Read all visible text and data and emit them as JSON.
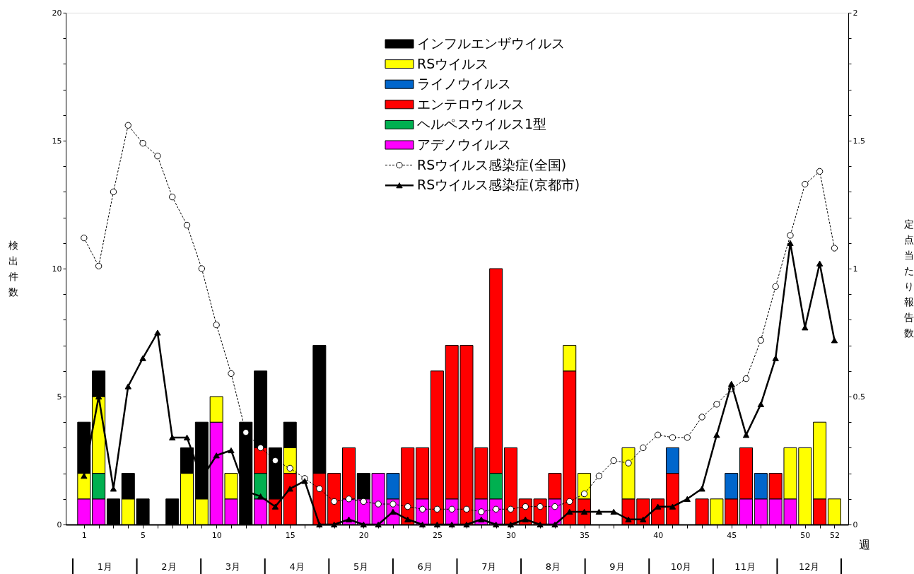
{
  "chart_data": {
    "type": "bar",
    "stacked": true,
    "xlabel": "週",
    "ylabel": "検出件数",
    "y2label": "定点当たり報告数",
    "x": [
      1,
      2,
      3,
      4,
      5,
      6,
      7,
      8,
      9,
      10,
      11,
      12,
      13,
      14,
      15,
      16,
      17,
      18,
      19,
      20,
      21,
      22,
      23,
      24,
      25,
      26,
      27,
      28,
      29,
      30,
      31,
      32,
      33,
      34,
      35,
      36,
      37,
      38,
      39,
      40,
      41,
      42,
      43,
      44,
      45,
      46,
      47,
      48,
      49,
      50,
      51,
      52
    ],
    "xlim": [
      0,
      52.7
    ],
    "xticks": [
      1,
      {
        "value": 2,
        "label": null
      },
      {
        "value": 3,
        "label": null
      },
      {
        "value": 4,
        "label": null
      },
      5,
      {
        "value": 6,
        "label": null
      },
      {
        "value": 7,
        "label": null
      },
      {
        "value": 8,
        "label": null
      },
      {
        "value": 9,
        "label": null
      },
      10,
      {
        "value": 11,
        "label": null
      },
      {
        "value": 12,
        "label": null
      },
      {
        "value": 13,
        "label": null
      },
      {
        "value": 14,
        "label": null
      },
      15,
      {
        "value": 16,
        "label": null
      },
      {
        "value": 17,
        "label": null
      },
      {
        "value": 18,
        "label": null
      },
      {
        "value": 19,
        "label": null
      },
      20,
      {
        "value": 21,
        "label": null
      },
      {
        "value": 22,
        "label": null
      },
      {
        "value": 23,
        "label": null
      },
      {
        "value": 24,
        "label": null
      },
      25,
      {
        "value": 26,
        "label": null
      },
      {
        "value": 27,
        "label": null
      },
      {
        "value": 28,
        "label": null
      },
      {
        "value": 29,
        "label": null
      },
      30,
      {
        "value": 31,
        "label": null
      },
      {
        "value": 32,
        "label": null
      },
      {
        "value": 33,
        "label": null
      },
      {
        "value": 34,
        "label": null
      },
      35,
      {
        "value": 36,
        "label": null
      },
      {
        "value": 37,
        "label": null
      },
      {
        "value": 38,
        "label": null
      },
      {
        "value": 39,
        "label": null
      },
      40,
      {
        "value": 41,
        "label": null
      },
      {
        "value": 42,
        "label": null
      },
      {
        "value": 43,
        "label": null
      },
      {
        "value": 44,
        "label": null
      },
      45,
      {
        "value": 46,
        "label": null
      },
      {
        "value": 47,
        "label": null
      },
      {
        "value": 48,
        "label": null
      },
      {
        "value": 49,
        "label": null
      },
      50,
      {
        "value": 51,
        "label": null
      },
      52
    ],
    "ylim": [
      0,
      20
    ],
    "yticks": [
      0,
      {
        "value": 1,
        "label": null
      },
      {
        "value": 2,
        "label": null
      },
      {
        "value": 3,
        "label": null
      },
      {
        "value": 4,
        "label": null
      },
      5,
      {
        "value": 6,
        "label": null
      },
      {
        "value": 7,
        "label": null
      },
      {
        "value": 8,
        "label": null
      },
      {
        "value": 9,
        "label": null
      },
      10,
      {
        "value": 11,
        "label": null
      },
      {
        "value": 12,
        "label": null
      },
      {
        "value": 13,
        "label": null
      },
      {
        "value": 14,
        "label": null
      },
      15,
      {
        "value": 16,
        "label": null
      },
      {
        "value": 17,
        "label": null
      },
      {
        "value": 18,
        "label": null
      },
      {
        "value": 19,
        "label": null
      },
      20
    ],
    "y2lim": [
      0,
      2
    ],
    "y2ticks": [
      0,
      {
        "value": 0.1,
        "label": null
      },
      {
        "value": 0.2,
        "label": null
      },
      {
        "value": 0.3,
        "label": null
      },
      {
        "value": 0.4,
        "label": null
      },
      0.5,
      {
        "value": 0.6,
        "label": null
      },
      {
        "value": 0.7,
        "label": null
      },
      {
        "value": 0.8,
        "label": null
      },
      {
        "value": 0.9,
        "label": null
      },
      1,
      {
        "value": 1.1,
        "label": null
      },
      {
        "value": 1.2,
        "label": null
      },
      {
        "value": 1.3,
        "label": null
      },
      {
        "value": 1.4,
        "label": null
      },
      1.5,
      {
        "value": 1.6,
        "label": null
      },
      {
        "value": 1.7,
        "label": null
      },
      {
        "value": 1.8,
        "label": null
      },
      {
        "value": 1.9,
        "label": null
      },
      2
    ],
    "legend": "top",
    "series": [
      {
        "name": "アデノウイルス",
        "color": "#ff00ff",
        "values": [
          1,
          1,
          0,
          0,
          0,
          0,
          0,
          0,
          0,
          4,
          1,
          0,
          1,
          0,
          0,
          0,
          0,
          0,
          1,
          1,
          2,
          1,
          0,
          1,
          0,
          1,
          0,
          1,
          1,
          0,
          0,
          0,
          1,
          0,
          0,
          0,
          0,
          0,
          0,
          0,
          0,
          0,
          0,
          0,
          0,
          1,
          1,
          1,
          1,
          0,
          0,
          0
        ]
      },
      {
        "name": "ヘルペスウイルス1型",
        "color": "#00b050",
        "values": [
          0,
          1,
          0,
          0,
          0,
          0,
          0,
          0,
          0,
          0,
          0,
          0,
          1,
          0,
          0,
          0,
          0,
          0,
          0,
          0,
          0,
          0,
          0,
          0,
          0,
          0,
          0,
          0,
          1,
          0,
          0,
          0,
          0,
          0,
          0,
          0,
          0,
          0,
          0,
          0,
          0,
          0,
          0,
          0,
          0,
          0,
          0,
          0,
          0,
          0,
          0,
          0
        ]
      },
      {
        "name": "エンテロウイルス",
        "color": "#ff0000",
        "values": [
          0,
          0,
          0,
          0,
          0,
          0,
          0,
          0,
          0,
          0,
          0,
          0,
          1,
          1,
          2,
          0,
          2,
          2,
          2,
          0,
          0,
          0,
          3,
          2,
          6,
          6,
          7,
          2,
          8,
          3,
          1,
          1,
          1,
          6,
          1,
          0,
          0,
          1,
          1,
          1,
          2,
          0,
          1,
          0,
          1,
          2,
          0,
          1,
          0,
          0,
          1,
          0
        ]
      },
      {
        "name": "ライノウイルス",
        "color": "#0066cc",
        "values": [
          0,
          0,
          0,
          0,
          0,
          0,
          0,
          0,
          0,
          0,
          0,
          0,
          0,
          0,
          0,
          0,
          0,
          0,
          0,
          0,
          0,
          1,
          0,
          0,
          0,
          0,
          0,
          0,
          0,
          0,
          0,
          0,
          0,
          0,
          0,
          0,
          0,
          0,
          0,
          0,
          1,
          0,
          0,
          0,
          1,
          0,
          1,
          0,
          0,
          0,
          0,
          0
        ]
      },
      {
        "name": "RSウイルス",
        "color": "#ffff00",
        "values": [
          1,
          3,
          0,
          1,
          0,
          0,
          0,
          2,
          1,
          1,
          1,
          0,
          0,
          0,
          1,
          0,
          0,
          0,
          0,
          0,
          0,
          0,
          0,
          0,
          0,
          0,
          0,
          0,
          0,
          0,
          0,
          0,
          0,
          1,
          1,
          0,
          0,
          2,
          0,
          0,
          0,
          0,
          0,
          1,
          0,
          0,
          0,
          0,
          2,
          3,
          3,
          1
        ]
      },
      {
        "name": "インフルエンザウイルス",
        "color": "#000000",
        "values": [
          2,
          1,
          1,
          1,
          1,
          0,
          1,
          1,
          3,
          0,
          0,
          4,
          3,
          2,
          1,
          0,
          5,
          0,
          0,
          1,
          0,
          0,
          0,
          0,
          0,
          0,
          0,
          0,
          0,
          0,
          0,
          0,
          0,
          0,
          0,
          0,
          0,
          0,
          0,
          0,
          0,
          0,
          0,
          0,
          0,
          0,
          0,
          0,
          0,
          0,
          0,
          0
        ]
      },
      {
        "name": "RSウイルス感染症(全国)",
        "type": "line",
        "axis": "y2",
        "color": "#000000",
        "marker": "circle",
        "line_style": "dashed",
        "values": [
          1.12,
          1.01,
          1.3,
          1.56,
          1.49,
          1.44,
          1.28,
          1.17,
          1.0,
          0.78,
          0.59,
          0.36,
          0.3,
          0.25,
          0.22,
          0.18,
          0.14,
          0.09,
          0.1,
          0.09,
          0.08,
          0.08,
          0.07,
          0.06,
          0.06,
          0.06,
          0.06,
          0.05,
          0.06,
          0.06,
          0.07,
          0.07,
          0.07,
          0.09,
          0.12,
          0.19,
          0.25,
          0.24,
          0.3,
          0.35,
          0.34,
          0.34,
          0.42,
          0.47,
          0.53,
          0.57,
          0.72,
          0.93,
          1.13,
          1.33,
          1.38,
          1.08
        ]
      },
      {
        "name": "RSウイルス感染症(京都市)",
        "type": "line",
        "axis": "y2",
        "color": "#000000",
        "marker": "triangle",
        "line_style": "solid",
        "values": [
          0.19,
          0.5,
          0.14,
          0.54,
          0.65,
          0.75,
          0.34,
          0.34,
          0.18,
          0.27,
          0.29,
          0.13,
          0.11,
          0.07,
          0.14,
          0.17,
          0,
          0,
          0.02,
          0,
          0,
          0.05,
          0.02,
          0,
          0,
          0,
          0,
          0.02,
          0,
          0,
          0.02,
          0,
          0,
          0.05,
          0.05,
          0.05,
          0.05,
          0.02,
          0.02,
          0.07,
          0.07,
          0.1,
          0.14,
          0.35,
          0.55,
          0.35,
          0.47,
          0.65,
          1.1,
          0.77,
          1.02,
          0.72
        ]
      }
    ],
    "annotations": [
      "1月",
      "2月",
      "3月",
      "4月",
      "5月",
      "6月",
      "7月",
      "8月",
      "9月",
      "10月",
      "11月",
      "12月"
    ]
  }
}
